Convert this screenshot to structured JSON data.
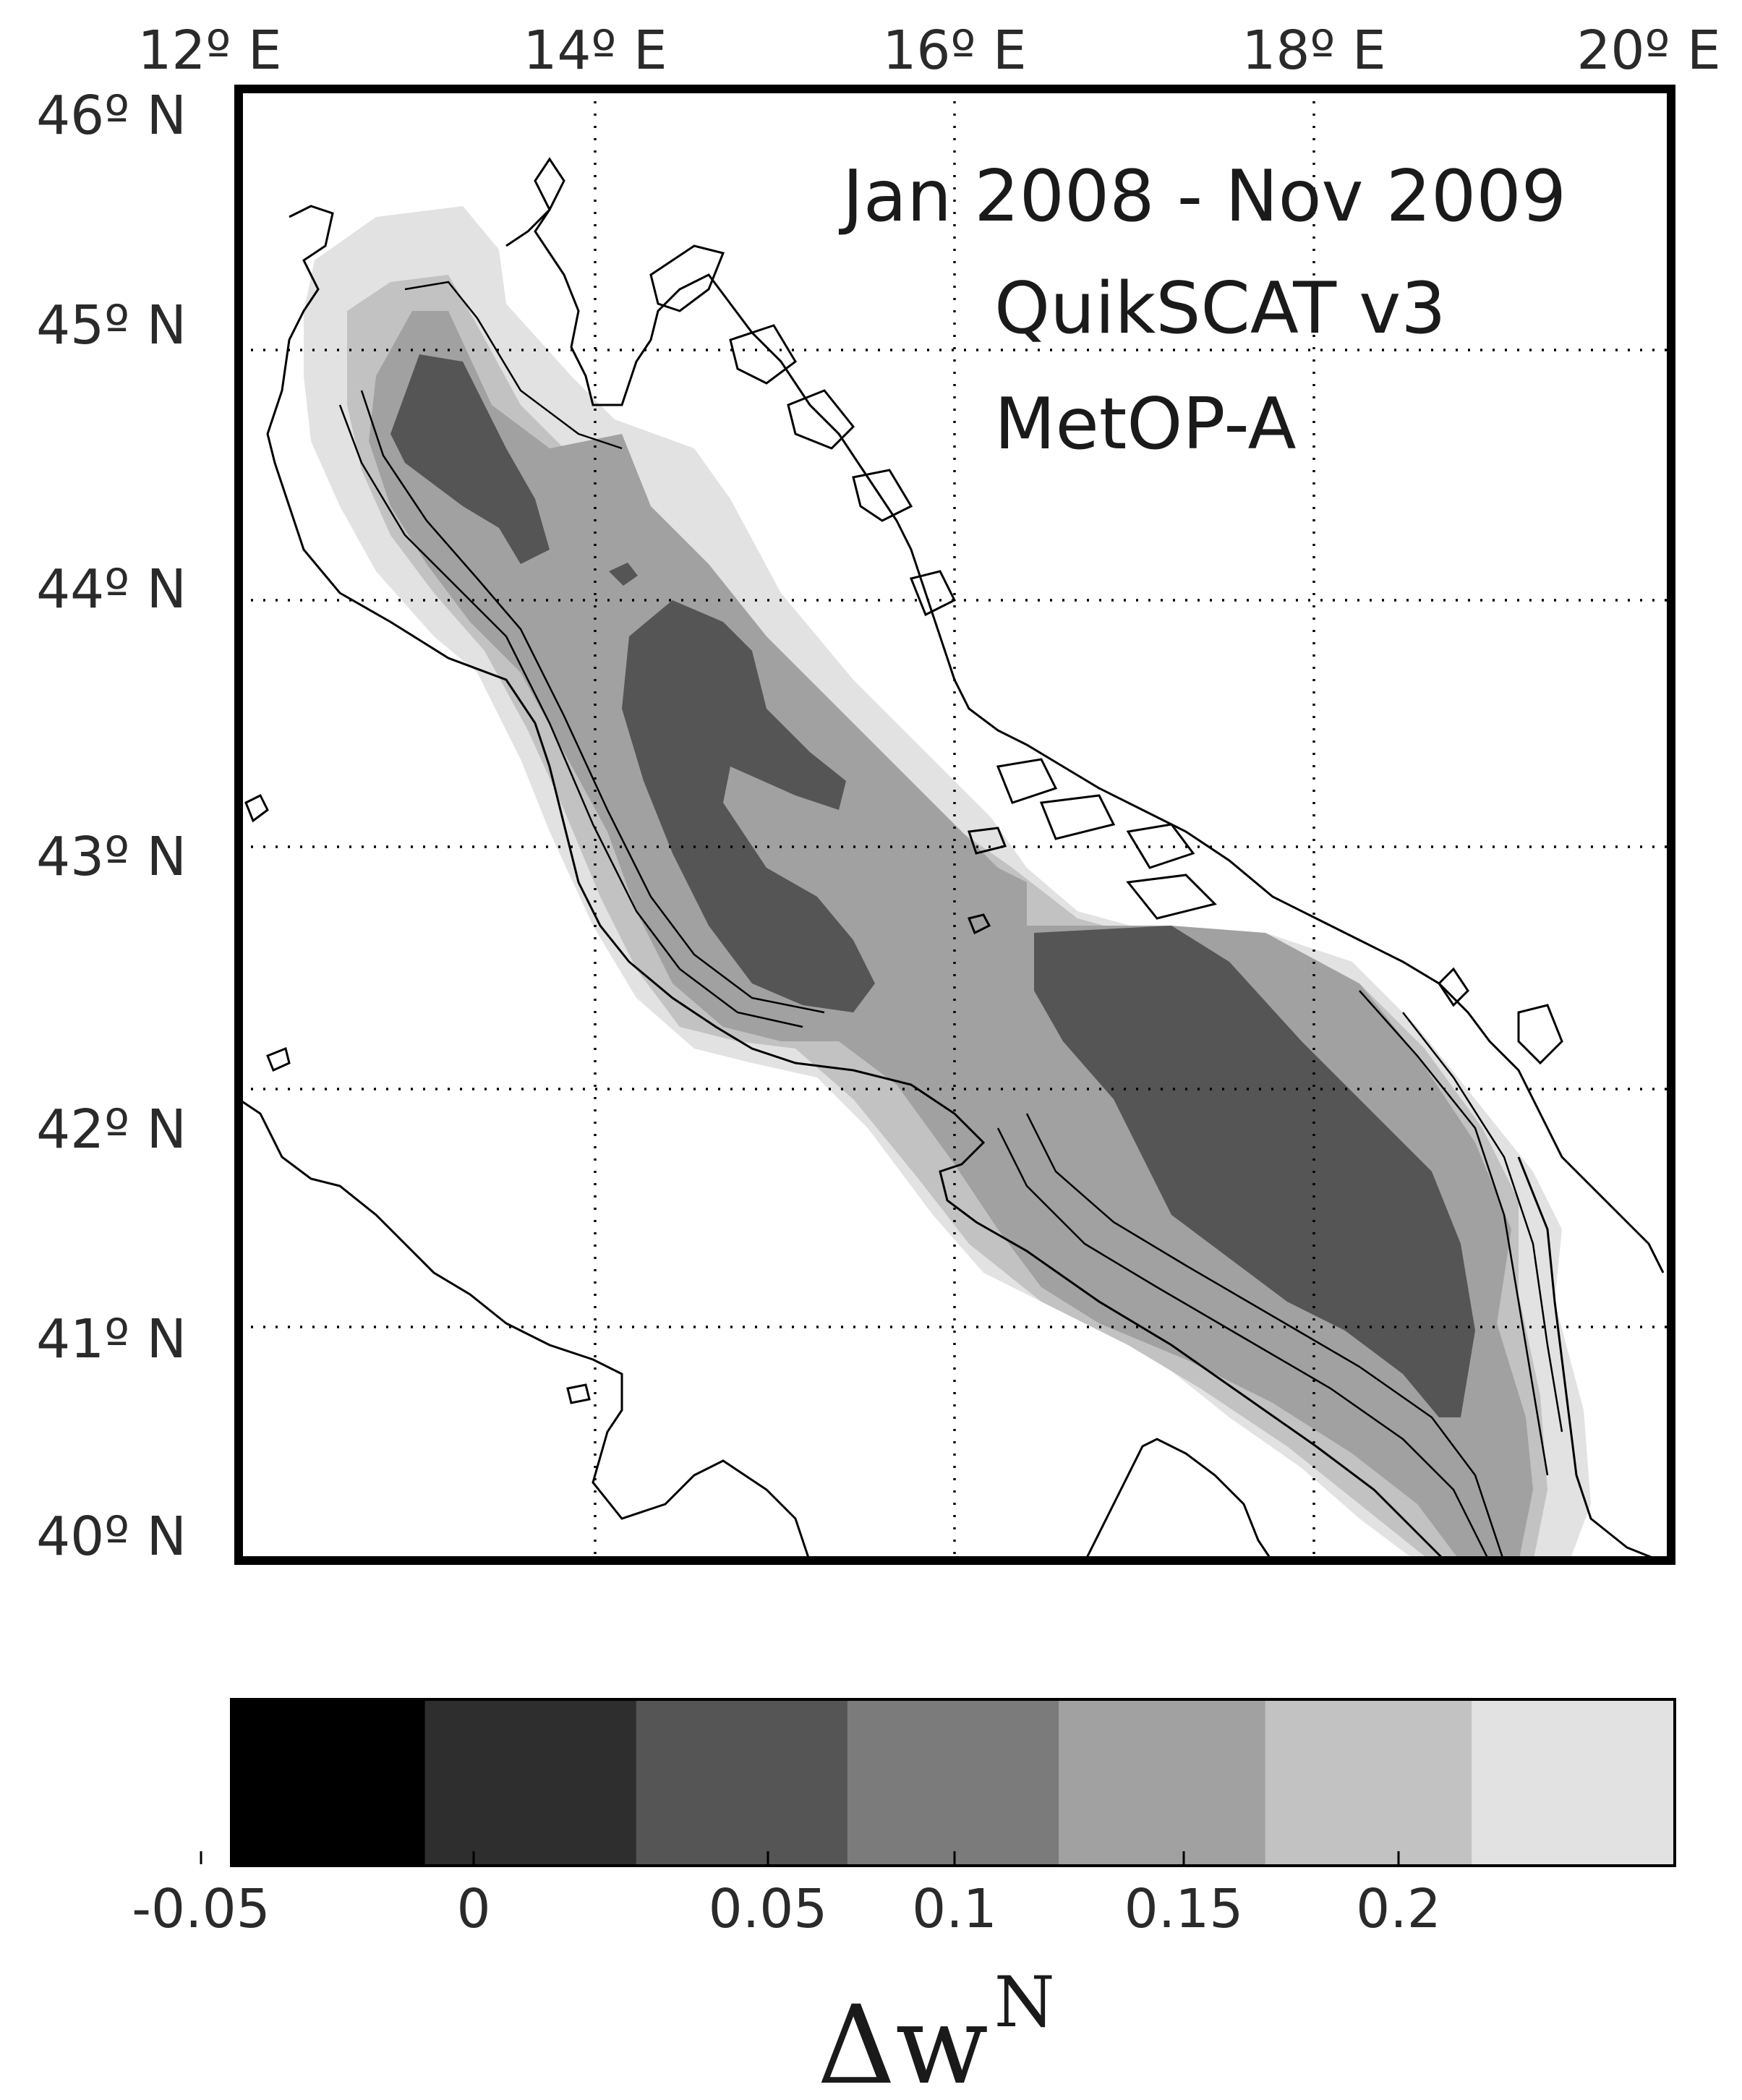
{
  "map": {
    "annotations": [
      "Jan 2008 - Nov 2009",
      "QuikSCAT v3",
      "MetOP-A"
    ],
    "lon_labels": [
      "12º E",
      "14º E",
      "16º E",
      "18º E",
      "20º E"
    ],
    "lat_labels": [
      "46º N",
      "45º N",
      "44º N",
      "43º N",
      "42º N",
      "41º N",
      "40º N"
    ],
    "extent": {
      "lon_min": 12,
      "lon_max": 20,
      "lat_min": 40,
      "lat_max": 46
    },
    "grid": true
  },
  "colorbar": {
    "ticks": [
      "-0.05",
      "0",
      "0.05",
      "0.1",
      "0.15",
      "0.2"
    ],
    "levels": [
      -0.05,
      0,
      0.05,
      0.1,
      0.15,
      0.2
    ],
    "colors": [
      "#000000",
      "#2e2e2e",
      "#555555",
      "#7b7b7b",
      "#a1a1a1",
      "#c2c2c2",
      "#e2e2e2"
    ],
    "title_main": "Δw",
    "title_sup": "N"
  },
  "colors": {
    "frame": "#000000",
    "land": "#ffffff",
    "sea": "#ffffff"
  }
}
